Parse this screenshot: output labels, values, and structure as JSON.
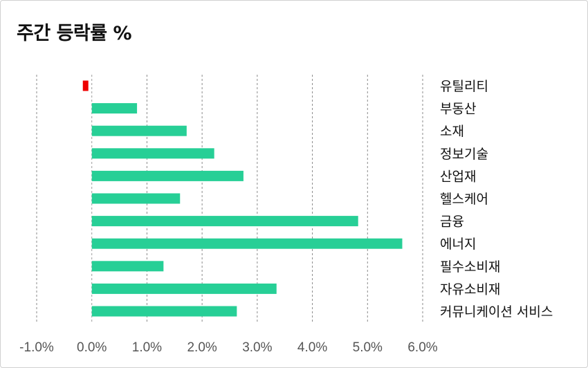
{
  "chart_data": {
    "type": "bar",
    "orientation": "horizontal",
    "title": "주간 등락률 %",
    "xlim": [
      -1.0,
      6.0
    ],
    "x_ticks": [
      -1.0,
      0.0,
      1.0,
      2.0,
      3.0,
      4.0,
      5.0,
      6.0
    ],
    "x_tick_labels": [
      "-1.0%",
      "0.0%",
      "1.0%",
      "2.0%",
      "3.0%",
      "4.0%",
      "5.0%",
      "6.0%"
    ],
    "categories": [
      "유틸리티",
      "부동산",
      "소재",
      "정보기술",
      "산업재",
      "헬스케어",
      "금융",
      "에너지",
      "필수소비재",
      "자유소비재",
      "커뮤니케이션 서비스"
    ],
    "values": [
      -0.1,
      0.82,
      1.72,
      2.22,
      2.75,
      1.6,
      4.83,
      5.63,
      1.3,
      3.35,
      2.63
    ],
    "positive_color": "#27cf96",
    "negative_color": "#ee0000",
    "grid": "vertical dashed",
    "legend": "none"
  }
}
